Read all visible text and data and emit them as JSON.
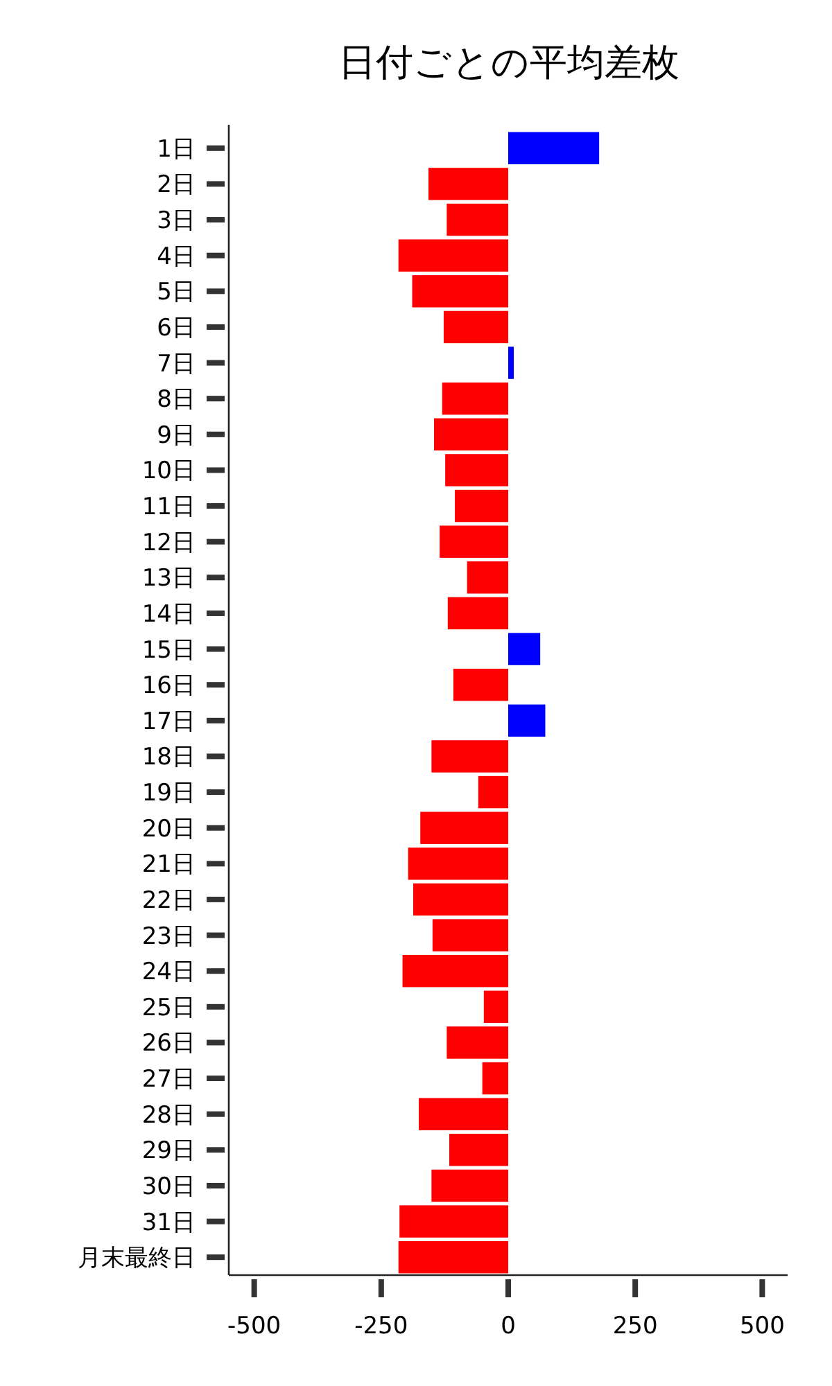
{
  "chart_data": {
    "type": "bar",
    "orientation": "horizontal",
    "title": "日付ごとの平均差枚",
    "categories": [
      "1日",
      "2日",
      "3日",
      "4日",
      "5日",
      "6日",
      "7日",
      "8日",
      "9日",
      "10日",
      "11日",
      "12日",
      "13日",
      "14日",
      "15日",
      "16日",
      "17日",
      "18日",
      "19日",
      "20日",
      "21日",
      "22日",
      "23日",
      "24日",
      "25日",
      "26日",
      "27日",
      "28日",
      "29日",
      "30日",
      "31日",
      "月末最終日"
    ],
    "values": [
      179,
      -157,
      -121,
      -216,
      -189,
      -127,
      11,
      -130,
      -146,
      -124,
      -105,
      -135,
      -81,
      -119,
      63,
      -108,
      73,
      -151,
      -59,
      -173,
      -197,
      -187,
      -149,
      -208,
      -48,
      -121,
      -51,
      -176,
      -116,
      -151,
      -214,
      -216
    ],
    "colors": [
      "#0000ff",
      "#ff0000",
      "#ff0000",
      "#ff0000",
      "#ff0000",
      "#ff0000",
      "#0000ff",
      "#ff0000",
      "#ff0000",
      "#ff0000",
      "#ff0000",
      "#ff0000",
      "#ff0000",
      "#ff0000",
      "#0000ff",
      "#ff0000",
      "#0000ff",
      "#ff0000",
      "#ff0000",
      "#ff0000",
      "#ff0000",
      "#ff0000",
      "#ff0000",
      "#ff0000",
      "#ff0000",
      "#ff0000",
      "#ff0000",
      "#ff0000",
      "#ff0000",
      "#ff0000",
      "#ff0000",
      "#ff0000"
    ],
    "xlim": [
      -550,
      550
    ],
    "xticks": [
      -500,
      -250,
      0,
      250,
      500
    ]
  }
}
